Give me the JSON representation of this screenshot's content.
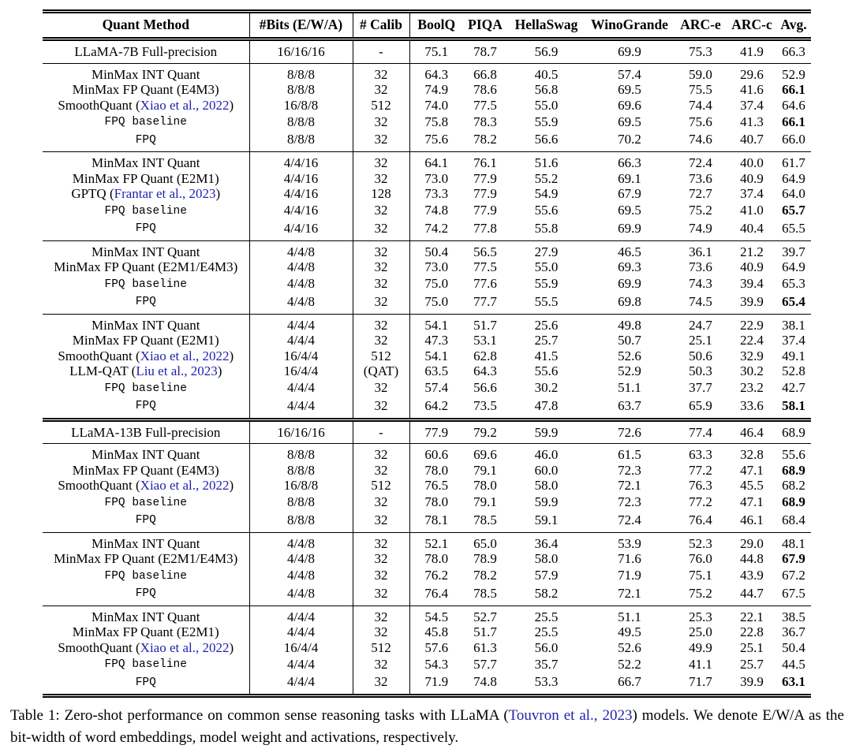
{
  "page": {
    "background_color": "#ffffff",
    "text_color": "#000000",
    "citation_color": "#2222b0"
  },
  "table": {
    "columns": [
      {
        "key": "method",
        "label": "Quant Method"
      },
      {
        "key": "bits",
        "label": "#Bits (E/W/A)"
      },
      {
        "key": "calib",
        "label": "# Calib"
      },
      {
        "key": "boolq",
        "label": "BoolQ"
      },
      {
        "key": "piqa",
        "label": "PIQA"
      },
      {
        "key": "hellaswag",
        "label": "HellaSwag"
      },
      {
        "key": "winogrande",
        "label": "WinoGrande"
      },
      {
        "key": "arc_e",
        "label": "ARC-e"
      },
      {
        "key": "arc_c",
        "label": "ARC-c"
      },
      {
        "key": "avg",
        "label": "Avg."
      }
    ],
    "sections": [
      {
        "full_precision": true,
        "rule_after": "single",
        "rows": [
          {
            "method": "LLaMA-7B Full-precision",
            "bits": "16/16/16",
            "calib": "-",
            "scores": [
              "75.1",
              "78.7",
              "56.9",
              "69.9",
              "75.3",
              "41.9"
            ],
            "avg": "66.3"
          }
        ]
      },
      {
        "rule_after": "single",
        "rows": [
          {
            "method": "MinMax INT Quant",
            "bits": "8/8/8",
            "calib": "32",
            "scores": [
              "64.3",
              "66.8",
              "40.5",
              "57.4",
              "59.0",
              "29.6"
            ],
            "avg": "52.9"
          },
          {
            "method": "MinMax FP Quant (E4M3)",
            "bits": "8/8/8",
            "calib": "32",
            "scores": [
              "74.9",
              "78.6",
              "56.8",
              "69.5",
              "75.5",
              "41.6"
            ],
            "avg": "66.1",
            "avg_bold": true
          },
          {
            "cite": {
              "pre": "SmoothQuant (",
              "link": "Xiao et al., 2022",
              "post": ")"
            },
            "bits": "16/8/8",
            "calib": "512",
            "scores": [
              "74.0",
              "77.5",
              "55.0",
              "69.6",
              "74.4",
              "37.4"
            ],
            "avg": "64.6"
          },
          {
            "method": "FPQ baseline",
            "mono": true,
            "bits": "8/8/8",
            "calib": "32",
            "scores": [
              "75.8",
              "78.3",
              "55.9",
              "69.5",
              "75.6",
              "41.3"
            ],
            "avg": "66.1",
            "avg_bold": true
          },
          {
            "method": "FPQ",
            "mono": true,
            "bits": "8/8/8",
            "calib": "32",
            "scores": [
              "75.6",
              "78.2",
              "56.6",
              "70.2",
              "74.6",
              "40.7"
            ],
            "avg": "66.0"
          }
        ]
      },
      {
        "rule_after": "single",
        "rows": [
          {
            "method": "MinMax INT Quant",
            "bits": "4/4/16",
            "calib": "32",
            "scores": [
              "64.1",
              "76.1",
              "51.6",
              "66.3",
              "72.4",
              "40.0"
            ],
            "avg": "61.7"
          },
          {
            "method": "MinMax FP Quant (E2M1)",
            "bits": "4/4/16",
            "calib": "32",
            "scores": [
              "73.0",
              "77.9",
              "55.2",
              "69.1",
              "73.6",
              "40.9"
            ],
            "avg": "64.9"
          },
          {
            "cite": {
              "pre": "GPTQ (",
              "link": "Frantar et al., 2023",
              "post": ")"
            },
            "bits": "4/4/16",
            "calib": "128",
            "scores": [
              "73.3",
              "77.9",
              "54.9",
              "67.9",
              "72.7",
              "37.4"
            ],
            "avg": "64.0"
          },
          {
            "method": "FPQ baseline",
            "mono": true,
            "bits": "4/4/16",
            "calib": "32",
            "scores": [
              "74.8",
              "77.9",
              "55.6",
              "69.5",
              "75.2",
              "41.0"
            ],
            "avg": "65.7",
            "avg_bold": true
          },
          {
            "method": "FPQ",
            "mono": true,
            "bits": "4/4/16",
            "calib": "32",
            "scores": [
              "74.2",
              "77.8",
              "55.8",
              "69.9",
              "74.9",
              "40.4"
            ],
            "avg": "65.5"
          }
        ]
      },
      {
        "rule_after": "single",
        "rows": [
          {
            "method": "MinMax INT Quant",
            "bits": "4/4/8",
            "calib": "32",
            "scores": [
              "50.4",
              "56.5",
              "27.9",
              "46.5",
              "36.1",
              "21.2"
            ],
            "avg": "39.7"
          },
          {
            "method": "MinMax FP Quant (E2M1/E4M3)",
            "bits": "4/4/8",
            "calib": "32",
            "scores": [
              "73.0",
              "77.5",
              "55.0",
              "69.3",
              "73.6",
              "40.9"
            ],
            "avg": "64.9"
          },
          {
            "method": "FPQ baseline",
            "mono": true,
            "bits": "4/4/8",
            "calib": "32",
            "scores": [
              "75.0",
              "77.6",
              "55.9",
              "69.9",
              "74.3",
              "39.4"
            ],
            "avg": "65.3"
          },
          {
            "method": "FPQ",
            "mono": true,
            "bits": "4/4/8",
            "calib": "32",
            "scores": [
              "75.0",
              "77.7",
              "55.5",
              "69.8",
              "74.5",
              "39.9"
            ],
            "avg": "65.4",
            "avg_bold": true
          }
        ]
      },
      {
        "rule_after": "double",
        "rows": [
          {
            "method": "MinMax INT Quant",
            "bits": "4/4/4",
            "calib": "32",
            "scores": [
              "54.1",
              "51.7",
              "25.6",
              "49.8",
              "24.7",
              "22.9"
            ],
            "avg": "38.1"
          },
          {
            "method": "MinMax FP Quant (E2M1)",
            "bits": "4/4/4",
            "calib": "32",
            "scores": [
              "47.3",
              "53.1",
              "25.7",
              "50.7",
              "25.1",
              "22.4"
            ],
            "avg": "37.4"
          },
          {
            "cite": {
              "pre": "SmoothQuant (",
              "link": "Xiao et al., 2022",
              "post": ")"
            },
            "bits": "16/4/4",
            "calib": "512",
            "scores": [
              "54.1",
              "62.8",
              "41.5",
              "52.6",
              "50.6",
              "32.9"
            ],
            "avg": "49.1"
          },
          {
            "cite": {
              "pre": "LLM-QAT (",
              "link": "Liu et al., 2023",
              "post": ")"
            },
            "bits": "16/4/4",
            "calib": "(QAT)",
            "scores": [
              "63.5",
              "64.3",
              "55.6",
              "52.9",
              "50.3",
              "30.2"
            ],
            "avg": "52.8"
          },
          {
            "method": "FPQ baseline",
            "mono": true,
            "bits": "4/4/4",
            "calib": "32",
            "scores": [
              "57.4",
              "56.6",
              "30.2",
              "51.1",
              "37.7",
              "23.2"
            ],
            "avg": "42.7"
          },
          {
            "method": "FPQ",
            "mono": true,
            "bits": "4/4/4",
            "calib": "32",
            "scores": [
              "64.2",
              "73.5",
              "47.8",
              "63.7",
              "65.9",
              "33.6"
            ],
            "avg": "58.1",
            "avg_bold": true
          }
        ]
      },
      {
        "full_precision": true,
        "rule_after": "single",
        "rows": [
          {
            "method": "LLaMA-13B Full-precision",
            "bits": "16/16/16",
            "calib": "-",
            "scores": [
              "77.9",
              "79.2",
              "59.9",
              "72.6",
              "77.4",
              "46.4"
            ],
            "avg": "68.9"
          }
        ]
      },
      {
        "rule_after": "single",
        "rows": [
          {
            "method": "MinMax INT Quant",
            "bits": "8/8/8",
            "calib": "32",
            "scores": [
              "60.6",
              "69.6",
              "46.0",
              "61.5",
              "63.3",
              "32.8"
            ],
            "avg": "55.6"
          },
          {
            "method": "MinMax FP Quant (E4M3)",
            "bits": "8/8/8",
            "calib": "32",
            "scores": [
              "78.0",
              "79.1",
              "60.0",
              "72.3",
              "77.2",
              "47.1"
            ],
            "avg": "68.9",
            "avg_bold": true
          },
          {
            "cite": {
              "pre": "SmoothQuant (",
              "link": "Xiao et al., 2022",
              "post": ")"
            },
            "bits": "16/8/8",
            "calib": "512",
            "scores": [
              "76.5",
              "78.0",
              "58.0",
              "72.1",
              "76.3",
              "45.5"
            ],
            "avg": "68.2"
          },
          {
            "method": "FPQ baseline",
            "mono": true,
            "bits": "8/8/8",
            "calib": "32",
            "scores": [
              "78.0",
              "79.1",
              "59.9",
              "72.3",
              "77.2",
              "47.1"
            ],
            "avg": "68.9",
            "avg_bold": true
          },
          {
            "method": "FPQ",
            "mono": true,
            "bits": "8/8/8",
            "calib": "32",
            "scores": [
              "78.1",
              "78.5",
              "59.1",
              "72.4",
              "76.4",
              "46.1"
            ],
            "avg": "68.4"
          }
        ]
      },
      {
        "rule_after": "single",
        "rows": [
          {
            "method": "MinMax INT Quant",
            "bits": "4/4/8",
            "calib": "32",
            "scores": [
              "52.1",
              "65.0",
              "36.4",
              "53.9",
              "52.3",
              "29.0"
            ],
            "avg": "48.1"
          },
          {
            "method": "MinMax FP Quant (E2M1/E4M3)",
            "bits": "4/4/8",
            "calib": "32",
            "scores": [
              "78.0",
              "78.9",
              "58.0",
              "71.6",
              "76.0",
              "44.8"
            ],
            "avg": "67.9",
            "avg_bold": true
          },
          {
            "method": "FPQ baseline",
            "mono": true,
            "bits": "4/4/8",
            "calib": "32",
            "scores": [
              "76.2",
              "78.2",
              "57.9",
              "71.9",
              "75.1",
              "43.9"
            ],
            "avg": "67.2"
          },
          {
            "method": "FPQ",
            "mono": true,
            "bits": "4/4/8",
            "calib": "32",
            "scores": [
              "76.4",
              "78.5",
              "58.2",
              "72.1",
              "75.2",
              "44.7"
            ],
            "avg": "67.5"
          }
        ]
      },
      {
        "rule_after": "double",
        "rows": [
          {
            "method": "MinMax INT Quant",
            "bits": "4/4/4",
            "calib": "32",
            "scores": [
              "54.5",
              "52.7",
              "25.5",
              "51.1",
              "25.3",
              "22.1"
            ],
            "avg": "38.5"
          },
          {
            "method": "MinMax FP Quant (E2M1)",
            "bits": "4/4/4",
            "calib": "32",
            "scores": [
              "45.8",
              "51.7",
              "25.5",
              "49.5",
              "25.0",
              "22.8"
            ],
            "avg": "36.7"
          },
          {
            "cite": {
              "pre": "SmoothQuant (",
              "link": "Xiao et al., 2022",
              "post": ")"
            },
            "bits": "16/4/4",
            "calib": "512",
            "scores": [
              "57.6",
              "61.3",
              "56.0",
              "52.6",
              "49.9",
              "25.1"
            ],
            "avg": "50.4"
          },
          {
            "method": "FPQ baseline",
            "mono": true,
            "bits": "4/4/4",
            "calib": "32",
            "scores": [
              "54.3",
              "57.7",
              "35.7",
              "52.2",
              "41.1",
              "25.7"
            ],
            "avg": "44.5"
          },
          {
            "method": "FPQ",
            "mono": true,
            "bits": "4/4/4",
            "calib": "32",
            "scores": [
              "71.9",
              "74.8",
              "53.3",
              "66.7",
              "71.7",
              "39.9"
            ],
            "avg": "63.1",
            "avg_bold": true
          }
        ]
      }
    ]
  },
  "caption": {
    "pre": "Table 1: Zero-shot performance on common sense reasoning tasks with LLaMA (",
    "cite": "Touvron et al., 2023",
    "post": ") models. We denote E/W/A as the bit-width of word embeddings, model weight and activations, respectively."
  }
}
